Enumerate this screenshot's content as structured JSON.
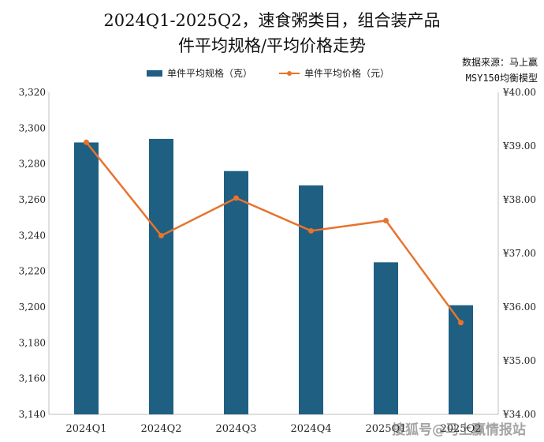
{
  "title_line1": "2024Q1-2025Q2，速食粥类目，组合装产品",
  "title_line2": "件平均规格/平均价格走势",
  "source_line1": "数据来源：马上赢",
  "source_line2": "MSY150均衡模型",
  "watermark": "搜狐号@马上赢情报站",
  "colors": {
    "bar": "#1f5f82",
    "line": "#e8732e"
  },
  "chart_data": {
    "type": "bar",
    "categories": [
      "2024Q1",
      "2024Q2",
      "2024Q3",
      "2024Q4",
      "2025Q1",
      "2025Q2"
    ],
    "series": [
      {
        "name": "单件平均规格（克）",
        "type": "bar",
        "axis": "left",
        "values": [
          3292,
          3294,
          3276,
          3268,
          3225,
          3201
        ]
      },
      {
        "name": "单件平均价格（元）",
        "type": "line",
        "axis": "right",
        "values": [
          39.07,
          37.33,
          38.03,
          37.42,
          37.61,
          35.71
        ]
      }
    ],
    "y_left": {
      "min": 3140,
      "max": 3320,
      "step": 20,
      "ticks": [
        "3,140",
        "3,160",
        "3,180",
        "3,200",
        "3,220",
        "3,240",
        "3,260",
        "3,280",
        "3,300",
        "3,320"
      ]
    },
    "y_right": {
      "min": 34,
      "max": 40,
      "step": 1,
      "ticks": [
        "¥34.00",
        "¥35.00",
        "¥36.00",
        "¥37.00",
        "¥38.00",
        "¥39.00",
        "¥40.00"
      ]
    },
    "legend_position": "top-center",
    "grid": false
  }
}
